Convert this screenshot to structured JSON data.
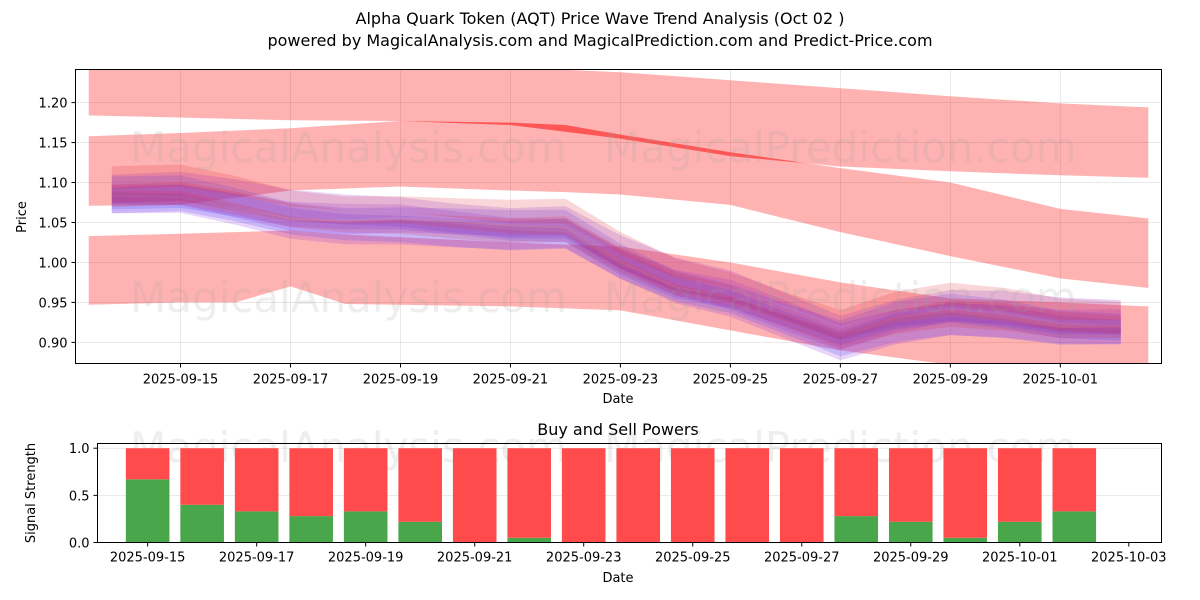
{
  "header": {
    "title": "Alpha Quark Token (AQT) Price Wave Trend Analysis (Oct 02 )",
    "subtitle": "powered by MagicalAnalysis.com and MagicalPrediction.com and Predict-Price.com"
  },
  "watermarks": [
    "MagicalAnalysis.com",
    "MagicalPrediction.com"
  ],
  "colors": {
    "wide_band": "#ff0000",
    "blue_band": "#3f3fff",
    "purple_band": "#8a2be2",
    "red_band": "#e0303a",
    "buy": "#4aa64a",
    "sell": "#ff4b4b"
  },
  "chart_data": [
    {
      "type": "area",
      "title": "",
      "xlabel": "Date",
      "ylabel": "Price",
      "x_origin_date": "2025-09-15",
      "x_unit": "days since x_origin_date",
      "xlim": [
        -1.91,
        17.84
      ],
      "ylim": [
        0.8736,
        1.2414
      ],
      "grid": true,
      "x_ticks": [
        {
          "value": 0,
          "label": "2025-09-15"
        },
        {
          "value": 2,
          "label": "2025-09-17"
        },
        {
          "value": 4,
          "label": "2025-09-19"
        },
        {
          "value": 6,
          "label": "2025-09-21"
        },
        {
          "value": 8,
          "label": "2025-09-23"
        },
        {
          "value": 10,
          "label": "2025-09-25"
        },
        {
          "value": 12,
          "label": "2025-09-27"
        },
        {
          "value": 14,
          "label": "2025-09-29"
        },
        {
          "value": 16,
          "label": "2025-10-01"
        }
      ],
      "y_ticks": [
        {
          "value": 0.9,
          "label": "0.90"
        },
        {
          "value": 0.95,
          "label": "0.95"
        },
        {
          "value": 1.0,
          "label": "1.00"
        },
        {
          "value": 1.05,
          "label": "1.05"
        },
        {
          "value": 1.1,
          "label": "1.10"
        },
        {
          "value": 1.15,
          "label": "1.15"
        },
        {
          "value": 1.2,
          "label": "1.20"
        }
      ],
      "wide_bands": [
        {
          "name": "upper-band",
          "x": [
            -1.67,
            2,
            4,
            6,
            8,
            10,
            12,
            14,
            16,
            17.6
          ],
          "upper": [
            1.245,
            1.245,
            1.245,
            1.244,
            1.238,
            1.228,
            1.218,
            1.208,
            1.199,
            1.194
          ],
          "lower": [
            1.184,
            1.178,
            1.177,
            1.172,
            1.155,
            1.133,
            1.12,
            1.114,
            1.109,
            1.106
          ]
        },
        {
          "name": "middle-band",
          "x": [
            -1.67,
            0,
            2,
            4,
            6,
            7,
            8,
            10,
            12,
            14,
            16,
            17.6
          ],
          "upper": [
            1.158,
            1.162,
            1.168,
            1.177,
            1.175,
            1.172,
            1.16,
            1.138,
            1.118,
            1.1,
            1.067,
            1.055
          ],
          "lower": [
            1.071,
            1.072,
            1.09,
            1.095,
            1.09,
            1.088,
            1.085,
            1.072,
            1.038,
            1.008,
            0.98,
            0.968
          ]
        },
        {
          "name": "lower-band",
          "x": [
            -1.67,
            0,
            1,
            2,
            3,
            6,
            8,
            10,
            12,
            14,
            16,
            17.6
          ],
          "upper": [
            1.033,
            1.036,
            1.038,
            1.04,
            1.035,
            1.025,
            1.02,
            1.0,
            0.975,
            0.955,
            0.95,
            0.945
          ],
          "lower": [
            0.947,
            0.95,
            0.95,
            0.97,
            0.948,
            0.945,
            0.94,
            0.915,
            0.89,
            0.872,
            0.865,
            0.86
          ]
        }
      ],
      "ensemble_center": {
        "x": [
          -1.25,
          0,
          1,
          2,
          3,
          4,
          5,
          6,
          7,
          8,
          9,
          10,
          11,
          12,
          13,
          14,
          15,
          16,
          17.1
        ],
        "y": [
          1.082,
          1.083,
          1.07,
          1.055,
          1.05,
          1.05,
          1.045,
          1.04,
          1.04,
          1.0,
          0.97,
          0.955,
          0.93,
          0.905,
          0.925,
          0.935,
          0.93,
          0.92,
          0.918
        ]
      },
      "ensemble_bands": [
        {
          "color": "blue_band",
          "offset": 0.0,
          "half_width": 0.012
        },
        {
          "color": "blue_band",
          "offset": 0.008,
          "half_width": 0.014
        },
        {
          "color": "blue_band",
          "offset": -0.01,
          "half_width": 0.012
        },
        {
          "color": "purple_band",
          "offset": -0.012,
          "half_width": 0.012
        },
        {
          "color": "purple_band",
          "offset": 0.004,
          "half_width": 0.015
        },
        {
          "color": "purple_band",
          "offset": 0.018,
          "half_width": 0.014
        },
        {
          "color": "red_band",
          "offset": 0.006,
          "half_width": 0.01
        },
        {
          "color": "red_band",
          "offset": 0.024,
          "half_width": 0.012
        },
        {
          "color": "red_band",
          "offset": -0.004,
          "half_width": 0.009
        }
      ]
    },
    {
      "type": "bar",
      "title": "Buy and Sell Powers",
      "xlabel": "Date",
      "ylabel": "Signal Strength",
      "x_origin_date": "2025-09-15",
      "xlim": [
        -0.92,
        18.6
      ],
      "ylim": [
        0,
        1.05
      ],
      "grid": true,
      "x_ticks": [
        {
          "value": 0,
          "label": "2025-09-15"
        },
        {
          "value": 2,
          "label": "2025-09-17"
        },
        {
          "value": 4,
          "label": "2025-09-19"
        },
        {
          "value": 6,
          "label": "2025-09-21"
        },
        {
          "value": 8,
          "label": "2025-09-23"
        },
        {
          "value": 10,
          "label": "2025-09-25"
        },
        {
          "value": 12,
          "label": "2025-09-27"
        },
        {
          "value": 14,
          "label": "2025-09-29"
        },
        {
          "value": 16,
          "label": "2025-10-01"
        },
        {
          "value": 18,
          "label": "2025-10-03"
        }
      ],
      "y_ticks": [
        {
          "value": 0.0,
          "label": "0.0"
        },
        {
          "value": 0.5,
          "label": "0.5"
        },
        {
          "value": 1.0,
          "label": "1.0"
        }
      ],
      "categories": [
        "2025-09-15",
        "2025-09-16",
        "2025-09-17",
        "2025-09-18",
        "2025-09-19",
        "2025-09-20",
        "2025-09-21",
        "2025-09-22",
        "2025-09-23",
        "2025-09-24",
        "2025-09-25",
        "2025-09-26",
        "2025-09-27",
        "2025-09-28",
        "2025-09-29",
        "2025-09-30",
        "2025-10-01",
        "2025-10-02"
      ],
      "series": [
        {
          "name": "Buy",
          "color": "buy",
          "values": [
            0.67,
            0.4,
            0.33,
            0.28,
            0.33,
            0.22,
            0.0,
            0.05,
            0.0,
            0.0,
            0.0,
            0.0,
            0.0,
            0.28,
            0.22,
            0.05,
            0.22,
            0.33
          ]
        },
        {
          "name": "Sell",
          "color": "sell",
          "values": [
            0.33,
            0.6,
            0.67,
            0.72,
            0.67,
            0.78,
            1.0,
            0.95,
            1.0,
            1.0,
            1.0,
            1.0,
            1.0,
            0.72,
            0.78,
            0.95,
            0.78,
            0.67
          ]
        }
      ]
    }
  ]
}
